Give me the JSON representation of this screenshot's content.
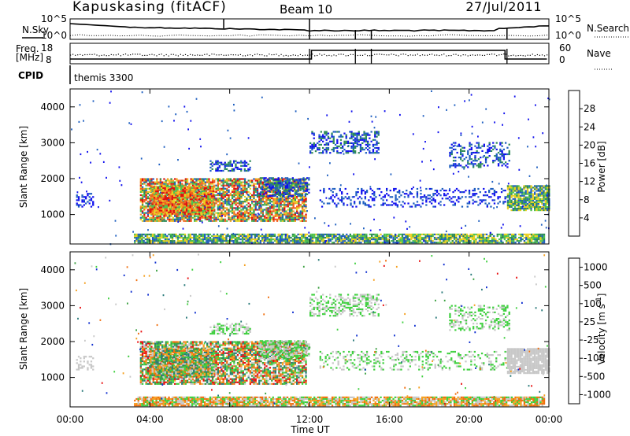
{
  "header": {
    "station": "Kapuskasing (fitACF)",
    "beam": "Beam 10",
    "date": "27/Jul/2011"
  },
  "nsky_panel": {
    "left_label": "N.Sky",
    "right_label": "N.Search",
    "left_ticks": [
      "10^5",
      "10^0"
    ],
    "right_ticks": [
      "10^5",
      "10^0"
    ]
  },
  "freq_panel": {
    "left_label_1": "Freq.",
    "left_label_2": "[MHz]",
    "right_label": "Nave",
    "left_ticks": [
      "18",
      "8"
    ],
    "right_ticks": [
      "60",
      "0"
    ]
  },
  "cpid": {
    "label": "CPID",
    "value": "themis 3300"
  },
  "chart_data": [
    {
      "type": "heatmap",
      "title": "Power",
      "ylabel": "Slant Range [km]",
      "xlabel": "",
      "xlim": [
        "00:00",
        "24:00"
      ],
      "ylim": [
        180,
        4500
      ],
      "y_ticks": [
        1000,
        2000,
        3000,
        4000
      ],
      "colorbar": {
        "label": "Power [dB]",
        "ticks": [
          "4",
          "8",
          "12",
          "16",
          "20",
          "24",
          "28"
        ],
        "colors": [
          "#1010ee",
          "#1e5fc0",
          "#2e8b57",
          "#4fc24f",
          "#e8d020",
          "#f5a020",
          "#f06020",
          "#e01010"
        ]
      },
      "features": [
        {
          "desc": "near range band",
          "t_range": [
            "03:00",
            "23:45"
          ],
          "range_km": [
            200,
            450
          ]
        },
        {
          "desc": "main echo region",
          "t_range": [
            "03:30",
            "12:00"
          ],
          "range_km": [
            800,
            2000
          ],
          "max_power_db": 28
        },
        {
          "desc": "midday echo",
          "t_range": [
            "12:00",
            "15:30"
          ],
          "range_km": [
            2700,
            3300
          ]
        },
        {
          "desc": "late echo",
          "t_range": [
            "21:50",
            "24:00"
          ],
          "range_km": [
            1100,
            1800
          ]
        }
      ]
    },
    {
      "type": "heatmap",
      "title": "Velocity",
      "ylabel": "Slant Range [km]",
      "xlabel": "Time UT",
      "xlim": [
        "00:00",
        "24:00"
      ],
      "ylim": [
        180,
        4500
      ],
      "y_ticks": [
        1000,
        2000,
        3000,
        4000
      ],
      "x_ticks": [
        "00:00",
        "04:00",
        "08:00",
        "12:00",
        "16:00",
        "20:00",
        "00:00"
      ],
      "colorbar": {
        "label_main": "Velocity  [m s",
        "label_sup": "-1",
        "label_end": "]",
        "ticks": [
          "1000",
          "500",
          "100",
          "25",
          "-25",
          "-100",
          "-500",
          "-1000"
        ],
        "colors": [
          "#1030d0",
          "#2a7a7a",
          "#3aa040",
          "#40d040",
          "#c8c8c8",
          "#f5a020",
          "#f07010",
          "#e81010"
        ]
      }
    }
  ]
}
